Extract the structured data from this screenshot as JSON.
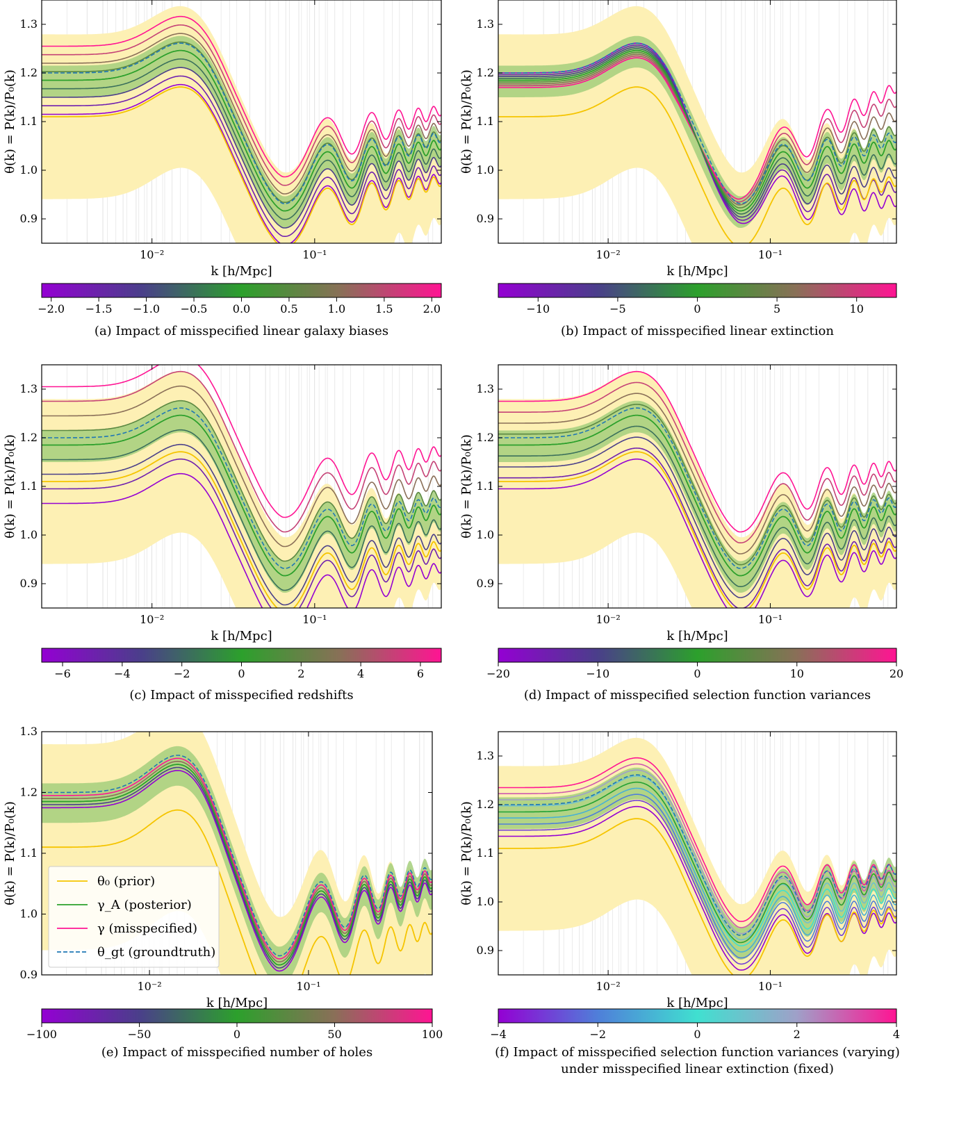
{
  "panels": [
    {
      "id": "a",
      "caption": "(a) Impact of misspecified linear galaxy biases",
      "cb_ticks": [
        "−2.0",
        "−1.5",
        "−1.0",
        "−0.5",
        "0.0",
        "0.5",
        "1.0",
        "1.5",
        "2.0"
      ],
      "cb_range": [
        -2.1,
        2.1
      ],
      "cb_tick_values": [
        -2,
        -1.5,
        -1,
        -0.5,
        0,
        0.5,
        1,
        1.5,
        2
      ]
    },
    {
      "id": "b",
      "caption": "(b) Impact of misspecified linear extinction",
      "cb_ticks": [
        "−10",
        "−5",
        "0",
        "5",
        "10"
      ],
      "cb_range": [
        -12.5,
        12.5
      ],
      "cb_tick_values": [
        -10,
        -5,
        0,
        5,
        10
      ]
    },
    {
      "id": "c",
      "caption": "(c) Impact of misspecified redshifts",
      "cb_ticks": [
        "−6",
        "−4",
        "−2",
        "0",
        "2",
        "4",
        "6"
      ],
      "cb_range": [
        -6.7,
        6.7
      ],
      "cb_tick_values": [
        -6,
        -4,
        -2,
        0,
        2,
        4,
        6
      ]
    },
    {
      "id": "d",
      "caption": "(d) Impact of misspecified selection function variances",
      "cb_ticks": [
        "−20",
        "−10",
        "0",
        "10",
        "20"
      ],
      "cb_range": [
        -20,
        20
      ],
      "cb_tick_values": [
        -20,
        -10,
        0,
        10,
        20
      ]
    },
    {
      "id": "e",
      "caption": "(e) Impact of misspecified number of holes",
      "cb_ticks": [
        "−100",
        "−50",
        "0",
        "50",
        "100"
      ],
      "cb_range": [
        -100,
        100
      ],
      "cb_tick_values": [
        -100,
        -50,
        0,
        50,
        100
      ]
    },
    {
      "id": "f",
      "caption": "(f) Impact of misspecified selection function variances (varying)",
      "caption2": "under misspecified linear extinction (fixed)",
      "cb_ticks": [
        "−4",
        "−2",
        "0",
        "2",
        "4"
      ],
      "cb_range": [
        -4,
        4
      ],
      "cb_tick_values": [
        -4,
        -2,
        0,
        2,
        4
      ]
    }
  ],
  "axes": {
    "ylabel": "θ(k) = P(k)/P₀(k)",
    "xlabel": "k [h/Mpc]",
    "y_ticks": [
      "0.9",
      "1.0",
      "1.1",
      "1.2",
      "1.3"
    ],
    "x_ticks": [
      "10⁻²",
      "10⁻¹"
    ]
  },
  "legend": {
    "prior": "θ₀ (prior)",
    "posterior": "γ_A (posterior)",
    "misspecified": "γ (misspecified)",
    "groundtruth": "θ_gt (groundtruth)"
  },
  "colors": {
    "prior": "#f5c400",
    "prior_band": "#fdf0b4",
    "posterior": "#2ca02c",
    "posterior_band": "#a5cf7c",
    "groundtruth": "#1f77b4",
    "cmap": [
      "#9400d3",
      "#4a3f8a",
      "#2ca02c",
      "#8a6f58",
      "#ff1493"
    ],
    "cmap_f": [
      "#9400d3",
      "#4f7fd9",
      "#40e0d0",
      "#9fa0c8",
      "#ff1493"
    ]
  },
  "chart_data": [
    {
      "type": "line",
      "panel": "a",
      "xscale": "log",
      "xlim": [
        0.0021,
        0.6
      ],
      "ylim": [
        0.85,
        1.35
      ],
      "series": [
        {
          "name": "θ₀ (prior)",
          "x": [
            0.002,
            0.005,
            0.0165,
            0.03,
            0.05,
            0.1,
            0.6
          ],
          "y": [
            1.115,
            1.115,
            1.19,
            1.1,
            0.935,
            0.965,
            1.065
          ]
        },
        {
          "name": "γ_A (posterior)",
          "x": [
            0.002,
            0.005,
            0.0165,
            0.03,
            0.05,
            0.1,
            0.6
          ],
          "y": [
            1.185,
            1.185,
            1.25,
            1.14,
            0.97,
            0.985,
            1.08
          ]
        },
        {
          "name": "θ_gt (groundtruth)",
          "x": [
            0.002,
            0.005,
            0.0165,
            0.03,
            0.05,
            0.1,
            0.6
          ],
          "y": [
            1.21,
            1.205,
            1.27,
            1.15,
            0.98,
            0.99,
            1.075
          ]
        }
      ]
    },
    {
      "type": "line",
      "panel": "b",
      "xscale": "log",
      "xlim": [
        0.0021,
        0.6
      ],
      "ylim": [
        0.85,
        1.35
      ],
      "series": [
        {
          "name": "θ₀ (prior)",
          "x": [
            0.002,
            0.005,
            0.0165,
            0.03,
            0.05,
            0.1,
            0.6
          ],
          "y": [
            1.115,
            1.11,
            1.19,
            1.1,
            0.935,
            0.965,
            1.065
          ]
        },
        {
          "name": "θ_gt (groundtruth)",
          "x": [
            0.002,
            0.005,
            0.0165,
            0.03,
            0.05,
            0.1,
            0.6
          ],
          "y": [
            1.21,
            1.205,
            1.27,
            1.15,
            0.98,
            0.99,
            1.075
          ]
        }
      ]
    },
    {
      "type": "line",
      "panel": "c",
      "xscale": "log",
      "xlim": [
        0.0021,
        0.6
      ],
      "ylim": [
        0.85,
        1.35
      ],
      "series": [
        {
          "name": "θ₀ (prior)",
          "x": [
            0.002,
            0.005,
            0.0165,
            0.03,
            0.05,
            0.1,
            0.6
          ],
          "y": [
            1.115,
            1.115,
            1.19,
            1.1,
            0.935,
            0.965,
            1.065
          ]
        },
        {
          "name": "θ_gt (groundtruth)",
          "x": [
            0.002,
            0.005,
            0.0165,
            0.03,
            0.05,
            0.1,
            0.6
          ],
          "y": [
            1.21,
            1.205,
            1.27,
            1.15,
            0.98,
            0.99,
            1.075
          ]
        }
      ]
    },
    {
      "type": "line",
      "panel": "d",
      "xscale": "log",
      "xlim": [
        0.0021,
        0.6
      ],
      "ylim": [
        0.85,
        1.35
      ],
      "series": [
        {
          "name": "θ₀ (prior)",
          "x": [
            0.002,
            0.005,
            0.0165,
            0.03,
            0.05,
            0.1,
            0.6
          ],
          "y": [
            1.115,
            1.115,
            1.19,
            1.1,
            0.935,
            0.965,
            1.065
          ]
        },
        {
          "name": "θ_gt (groundtruth)",
          "x": [
            0.002,
            0.005,
            0.0165,
            0.03,
            0.05,
            0.1,
            0.6
          ],
          "y": [
            1.21,
            1.205,
            1.27,
            1.15,
            0.98,
            0.99,
            1.075
          ]
        }
      ]
    },
    {
      "type": "line",
      "panel": "e",
      "xscale": "log",
      "xlim": [
        0.0021,
        0.6
      ],
      "ylim": [
        0.9,
        1.3
      ],
      "series": [
        {
          "name": "θ₀ (prior)",
          "x": [
            0.002,
            0.005,
            0.0165,
            0.03,
            0.05,
            0.1,
            0.6
          ],
          "y": [
            1.115,
            1.115,
            1.19,
            1.1,
            0.935,
            0.965,
            1.065
          ]
        },
        {
          "name": "θ_gt (groundtruth)",
          "x": [
            0.002,
            0.005,
            0.0165,
            0.03,
            0.05,
            0.1,
            0.6
          ],
          "y": [
            1.21,
            1.205,
            1.27,
            1.15,
            0.98,
            0.99,
            1.075
          ]
        }
      ]
    },
    {
      "type": "line",
      "panel": "f",
      "xscale": "log",
      "xlim": [
        0.0021,
        0.6
      ],
      "ylim": [
        0.85,
        1.35
      ],
      "series": [
        {
          "name": "θ₀ (prior)",
          "x": [
            0.002,
            0.005,
            0.0165,
            0.03,
            0.05,
            0.1,
            0.6
          ],
          "y": [
            1.115,
            1.115,
            1.19,
            1.1,
            0.935,
            0.965,
            1.065
          ]
        },
        {
          "name": "θ_gt (groundtruth)",
          "x": [
            0.002,
            0.005,
            0.0165,
            0.03,
            0.05,
            0.1,
            0.6
          ],
          "y": [
            1.21,
            1.205,
            1.27,
            1.15,
            0.98,
            0.99,
            1.075
          ]
        }
      ]
    }
  ]
}
